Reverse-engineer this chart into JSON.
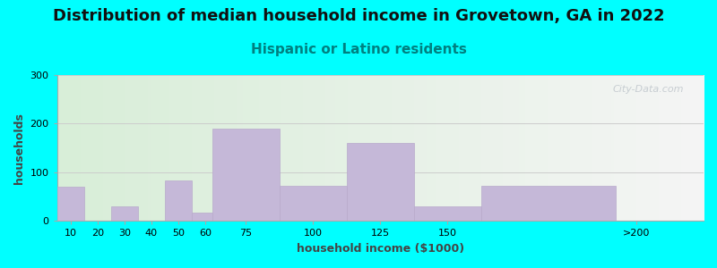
{
  "title": "Distribution of median household income in Grovetown, GA in 2022",
  "subtitle": "Hispanic or Latino residents",
  "xlabel": "household income ($1000)",
  "ylabel": "households",
  "background_color": "#00FFFF",
  "bar_color": "#c5b8d8",
  "bar_edge_color": "#b8aacb",
  "bar_left_edges": [
    5,
    15,
    25,
    35,
    45,
    55,
    62.5,
    87.5,
    112.5,
    137.5,
    162.5
  ],
  "bar_widths": [
    10,
    10,
    10,
    10,
    10,
    7.5,
    25,
    25,
    25,
    25,
    50
  ],
  "values": [
    70,
    0,
    30,
    0,
    83,
    18,
    190,
    72,
    160,
    30,
    72
  ],
  "xtick_positions": [
    10,
    20,
    30,
    40,
    50,
    60,
    75,
    100,
    125,
    150,
    220
  ],
  "xtick_labels": [
    "10",
    "20",
    "30",
    "40",
    "50",
    "60",
    "75",
    "100",
    "125",
    "150",
    ">200"
  ],
  "ylim": [
    0,
    300
  ],
  "xlim": [
    5,
    245
  ],
  "yticks": [
    0,
    100,
    200,
    300
  ],
  "grid_color": "#cccccc",
  "watermark": "City-Data.com",
  "title_fontsize": 13,
  "subtitle_fontsize": 11,
  "subtitle_color": "#008080",
  "axis_label_fontsize": 9,
  "tick_fontsize": 8,
  "plot_bg_left_color": "#d8eed8",
  "plot_bg_right_color": "#f5f5f5"
}
